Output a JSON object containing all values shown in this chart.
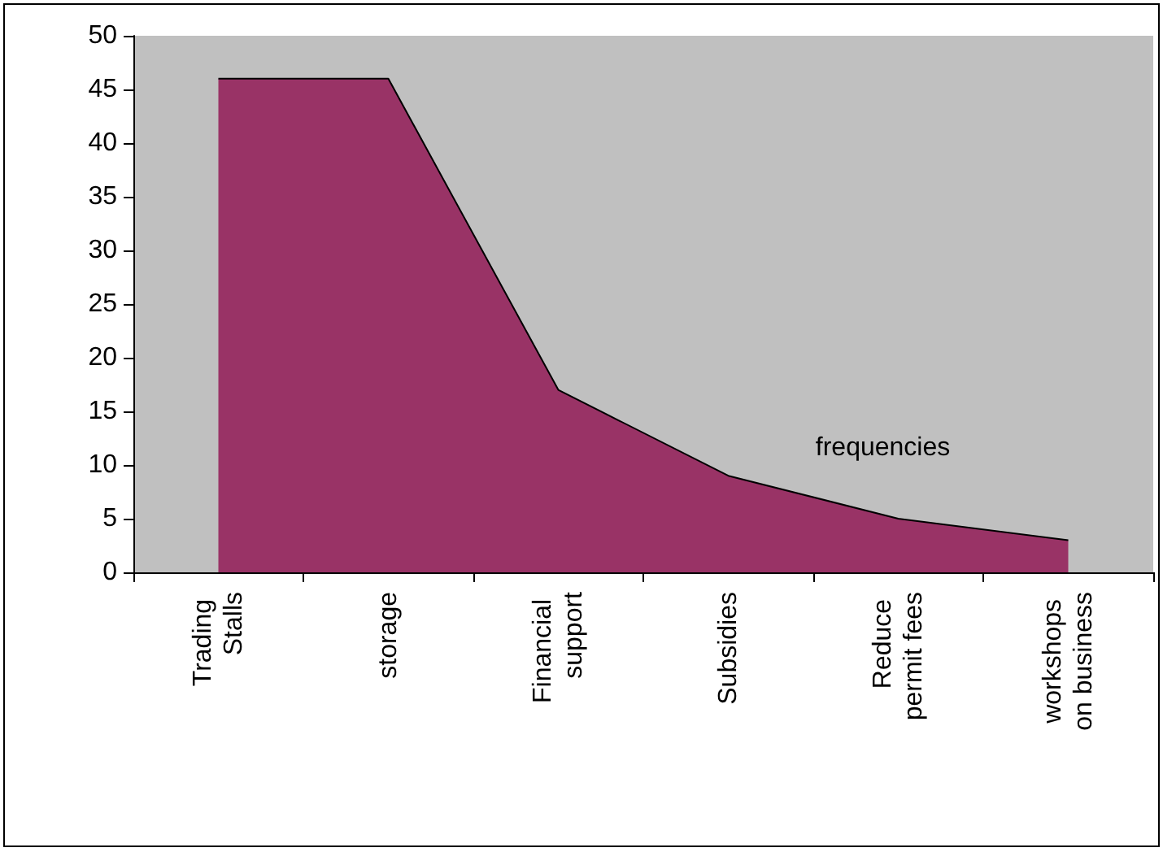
{
  "chart_data": {
    "type": "area",
    "categories": [
      "Trading Stalls",
      "storage",
      "Financial support",
      "Subsidies",
      "Reduce permit fees",
      "workshops on business"
    ],
    "series": [
      {
        "name": "frequencies",
        "color": "#993366",
        "values": [
          46,
          46,
          17,
          9,
          5,
          3
        ]
      }
    ],
    "ylim": [
      0,
      50
    ],
    "yticks": [
      0,
      5,
      10,
      15,
      20,
      25,
      30,
      35,
      40,
      45,
      50
    ],
    "grid": false,
    "legend": false
  }
}
